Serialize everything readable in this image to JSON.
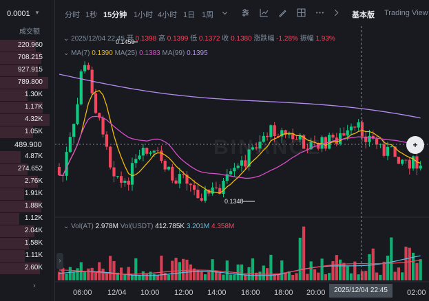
{
  "orderbook": {
    "precision": "0.0001",
    "volume_header": "成交额",
    "mid_price": "489.900",
    "asks": [
      "220.960",
      "708.215",
      "927.915",
      "789.800",
      "1.30K",
      "1.17K",
      "4.32K",
      "1.05K"
    ],
    "bids": [
      "4.87K",
      "274.652",
      "2.76K",
      "1.91K",
      "1.88K",
      "1.12K",
      "2.04K",
      "1.58K",
      "1.11K",
      "2.60K"
    ]
  },
  "toolbar": {
    "intervals": [
      "分时",
      "1秒",
      "15分钟",
      "1小时",
      "4小时",
      "1日",
      "1周"
    ],
    "active_interval": "15分钟",
    "view_basic": "基本版",
    "view_tradingview": "Trading View"
  },
  "legend": {
    "date": "2025/12/04 22:45",
    "open_label": "开",
    "open": "0.1398",
    "high_label": "高",
    "high": "0.1399",
    "low_label": "低",
    "low": "0.1372",
    "close_label": "收",
    "close": "0.1380",
    "change_label": "涨跌幅",
    "change": "-1.28%",
    "amp_label": "振幅",
    "amp": "1.93%",
    "ma7_label": "MA(7)",
    "ma7": "0.1390",
    "ma25_label": "MA(25)",
    "ma25": "0.1383",
    "ma99_label": "MA(99)",
    "ma99": "0.1395",
    "vol_label": "Vol(AT)",
    "vol": "2.978M",
    "volusdt_label": "Vol(USDT)",
    "volusdt": "412.785K",
    "vma1": "3.201M",
    "vma2": "4.358M"
  },
  "chart_data": {
    "type": "candlestick",
    "high_label": "0.1450",
    "low_label": "0.1348",
    "x_labels": [
      "06:00",
      "12/04",
      "10:00",
      "12:00",
      "14:00",
      "16:00",
      "18:00",
      "20:00",
      "2025/12/04 22:45",
      "02:00"
    ],
    "crosshair_time": "2025/12/04 22:45",
    "colors": {
      "up": "#0ecb81",
      "down": "#f6465d",
      "ma7": "#f0b90b",
      "ma25": "#d94ec7",
      "ma99": "#b58cf2"
    }
  },
  "watermark": "BINANCE"
}
